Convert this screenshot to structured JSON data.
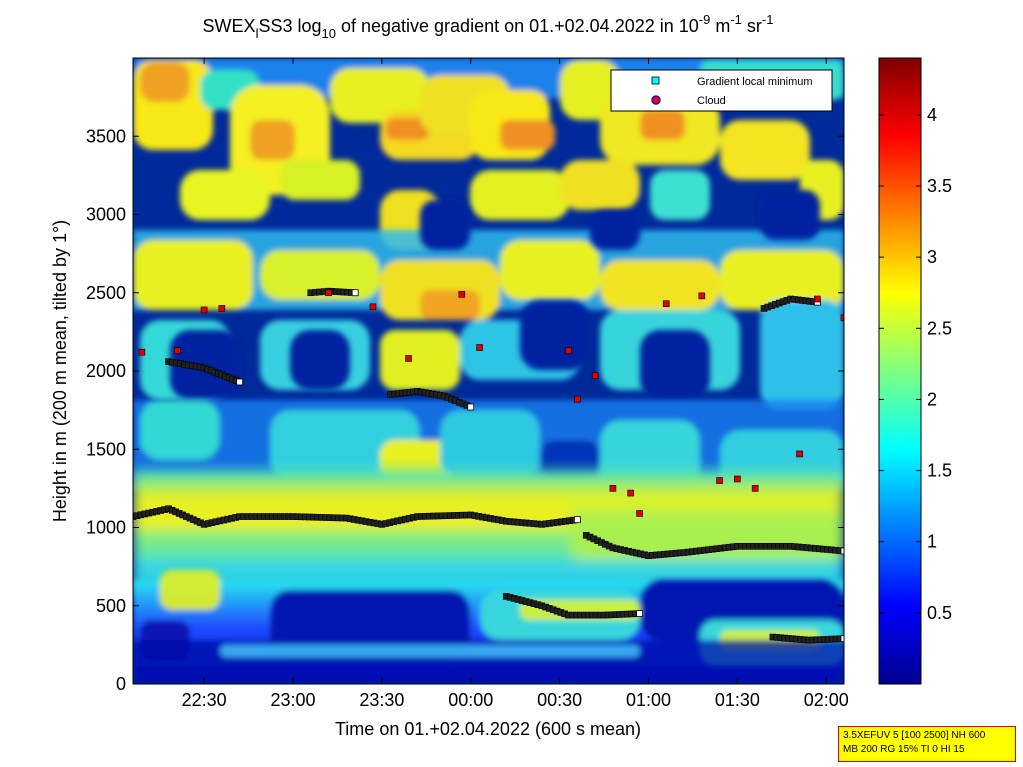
{
  "chart_data": {
    "type": "heatmap",
    "title_parts": {
      "a": "SWEX",
      "sub1": "l",
      "b": "SS3 log",
      "sub2": "10",
      "c": " of negative gradient on 01.+02.04.2022 in 10",
      "sup1": "-9",
      "d": " m",
      "sup2": "-1",
      "e": " sr",
      "sup3": "-1"
    },
    "xlabel": "Time on 01.+02.04.2022 (600 s mean)",
    "ylabel": "Height in m (200 m mean, tilted by 1°)",
    "x_ticks": [
      "22:30",
      "23:00",
      "23:30",
      "00:00",
      "00:30",
      "01:00",
      "01:30",
      "02:00"
    ],
    "x_tick_hours": [
      22.5,
      23.0,
      23.5,
      24.0,
      24.5,
      25.0,
      25.5,
      26.0
    ],
    "xlim_hours": [
      22.1,
      26.1
    ],
    "y_ticks": [
      0,
      500,
      1000,
      1500,
      2000,
      2500,
      3000,
      3500
    ],
    "ylim": [
      0,
      4000
    ],
    "colorbar": {
      "ticks": [
        "0.5",
        "1",
        "1.5",
        "2",
        "2.5",
        "3",
        "3.5",
        "4"
      ],
      "tick_values": [
        0.5,
        1,
        1.5,
        2,
        2.5,
        3,
        3.5,
        4
      ],
      "range": [
        0,
        4.4
      ],
      "colormap": "jet"
    },
    "legend": {
      "placement": "top-right",
      "entries": [
        {
          "label": "Gradient local minimum",
          "marker": "square",
          "color": "#00ffff"
        },
        {
          "label": "Cloud",
          "marker": "circle",
          "color": "#ff0000"
        }
      ]
    },
    "series": [
      {
        "marker": "gradient-minimum",
        "lines": [
          {
            "x": [
              22.1,
              22.3,
              22.5,
              22.7,
              23.0,
              23.3,
              23.5,
              23.7,
              24.0,
              24.2,
              24.4,
              24.6
            ],
            "y": [
              1070,
              1120,
              1020,
              1070,
              1070,
              1060,
              1020,
              1070,
              1080,
              1040,
              1020,
              1050
            ]
          },
          {
            "x": [
              24.65,
              24.8,
              25.0,
              25.2,
              25.5,
              25.8,
              26.1
            ],
            "y": [
              950,
              870,
              820,
              840,
              880,
              880,
              850
            ]
          },
          {
            "x": [
              24.2,
              24.4,
              24.55,
              24.75,
              24.95
            ],
            "y": [
              560,
              500,
              440,
              440,
              450
            ]
          },
          {
            "x": [
              25.7,
              25.9,
              26.1
            ],
            "y": [
              300,
              280,
              290
            ]
          },
          {
            "x": [
              25.65,
              25.8,
              25.95
            ],
            "y": [
              2400,
              2460,
              2440
            ]
          },
          {
            "x": [
              22.3,
              22.5,
              22.7
            ],
            "y": [
              2060,
              2020,
              1930
            ]
          },
          {
            "x": [
              23.1,
              23.2,
              23.35
            ],
            "y": [
              2500,
              2510,
              2500
            ]
          },
          {
            "x": [
              23.55,
              23.7,
              23.85,
              24.0
            ],
            "y": [
              1850,
              1870,
              1840,
              1770
            ]
          }
        ]
      },
      {
        "marker": "cloud",
        "points_x": [
          22.15,
          22.35,
          22.5,
          22.6,
          23.2,
          23.45,
          23.65,
          23.95,
          24.05,
          24.55,
          24.6,
          24.7,
          24.8,
          24.9,
          24.95,
          25.1,
          25.3,
          25.4,
          25.5,
          25.6,
          25.85,
          25.95,
          26.1
        ],
        "points_y": [
          2120,
          2130,
          2390,
          2400,
          2500,
          2410,
          2080,
          2490,
          2150,
          2130,
          1820,
          1970,
          1250,
          1220,
          1090,
          2430,
          2480,
          1300,
          1310,
          1250,
          1470,
          2460,
          2340
        ]
      }
    ]
  },
  "footer_box": {
    "line1": "3.5XEFUV 5 [100 2500] NH 600",
    "line2": "MB 200 RG 15% TI 0 HI 15"
  }
}
